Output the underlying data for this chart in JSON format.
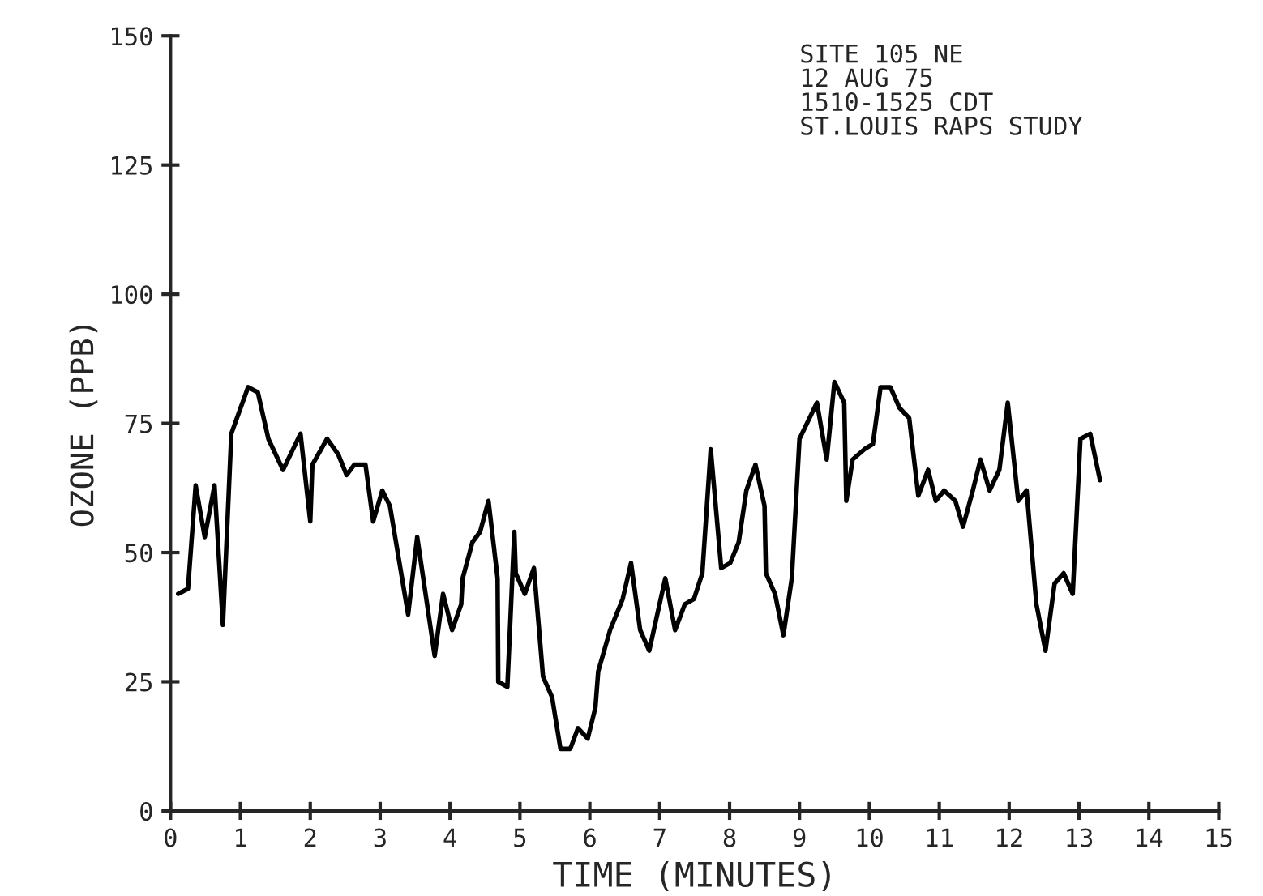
{
  "chart_data": {
    "type": "line",
    "xlabel": "TIME (MINUTES)",
    "ylabel": "OZONE (PPB)",
    "annotations": [
      "SITE 105 NE\n12 AUG 75\n1510-1525 CDT\nST.LOUIS RAPS STUDY"
    ],
    "xlim": [
      0,
      15
    ],
    "xticks": [
      0,
      1,
      2,
      3,
      4,
      5,
      6,
      7,
      8,
      9,
      10,
      11,
      12,
      13,
      14,
      15
    ],
    "ylim": [
      0,
      150
    ],
    "yticks": [
      0,
      25,
      50,
      75,
      100,
      125,
      150
    ],
    "grid": false,
    "marker": "none",
    "line_style": "solid",
    "series": [
      {
        "color": "#000000",
        "x": [
          0.11,
          0.25,
          0.36,
          0.49,
          0.63,
          0.75,
          0.87,
          1.11,
          1.25,
          1.4,
          1.61,
          1.86,
          2.0,
          2.03,
          2.24,
          2.4,
          2.52,
          2.63,
          2.79,
          2.9,
          3.03,
          3.14,
          3.4,
          3.53,
          3.78,
          3.9,
          4.03,
          4.16,
          4.18,
          4.32,
          4.43,
          4.55,
          4.68,
          4.69,
          4.82,
          4.92,
          4.94,
          5.07,
          5.2,
          5.33,
          5.46,
          5.58,
          5.72,
          5.83,
          5.97,
          6.08,
          6.12,
          6.29,
          6.47,
          6.59,
          6.72,
          6.85,
          7.08,
          7.22,
          7.36,
          7.49,
          7.61,
          7.73,
          7.88,
          8.01,
          8.13,
          8.24,
          8.37,
          8.5,
          8.52,
          8.65,
          8.77,
          8.89,
          9.0,
          9.25,
          9.39,
          9.5,
          9.64,
          9.67,
          9.76,
          9.93,
          10.05,
          10.16,
          10.3,
          10.43,
          10.57,
          10.7,
          10.84,
          10.95,
          11.07,
          11.23,
          11.34,
          11.48,
          11.59,
          11.72,
          11.86,
          11.98,
          12.13,
          12.25,
          12.39,
          12.52,
          12.65,
          12.78,
          12.91,
          13.02,
          13.16,
          13.3
        ],
        "values": [
          42,
          43,
          63,
          53,
          63,
          36,
          73,
          82,
          81,
          72,
          66,
          73,
          56,
          67,
          72,
          69,
          65,
          67,
          67,
          56,
          62,
          59,
          38,
          53,
          30,
          42,
          35,
          40,
          45,
          52,
          54,
          60,
          45,
          25,
          24,
          54,
          46,
          42,
          47,
          26,
          22,
          12,
          12,
          16,
          14,
          20,
          27,
          35,
          41,
          48,
          35,
          31,
          45,
          35,
          40,
          41,
          46,
          70,
          47,
          48,
          52,
          62,
          67,
          59,
          46,
          42,
          34,
          45,
          72,
          79,
          68,
          83,
          79,
          60,
          68,
          70,
          71,
          82,
          82,
          78,
          76,
          61,
          66,
          60,
          62,
          60,
          55,
          62,
          68,
          62,
          66,
          79,
          60,
          62,
          40,
          31,
          44,
          46,
          42,
          72,
          73,
          64
        ]
      }
    ]
  }
}
